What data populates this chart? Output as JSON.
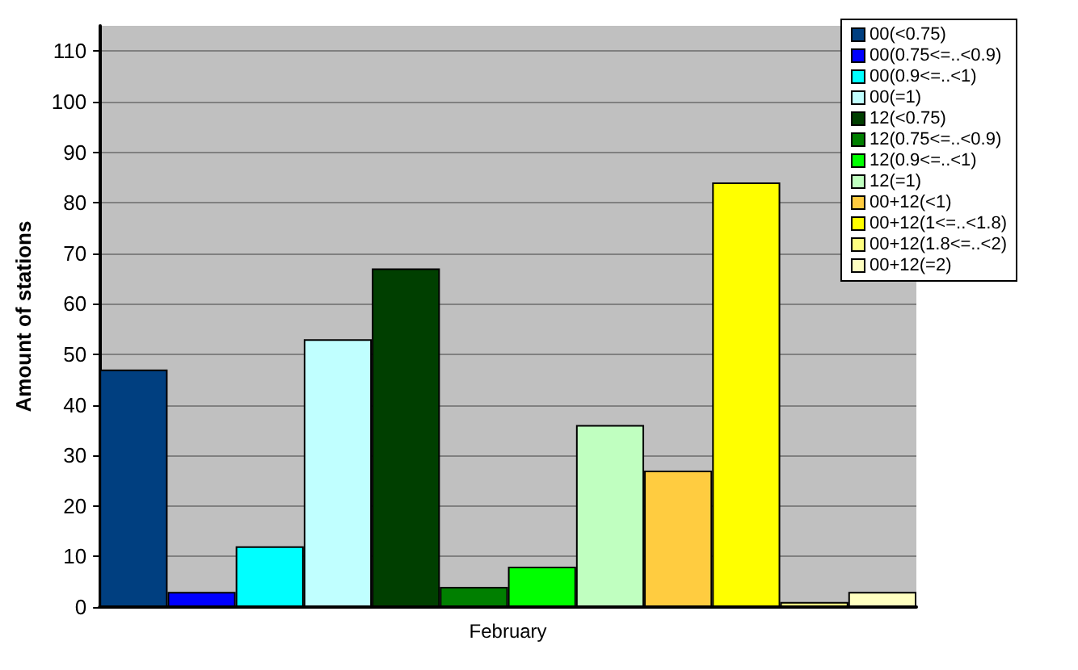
{
  "chart_data": {
    "type": "bar",
    "ylabel": "Amount of stations",
    "categories": [
      "February"
    ],
    "series": [
      {
        "name": "00(<0.75)",
        "color": "#003f80",
        "values": [
          47
        ]
      },
      {
        "name": "00(0.75<=..<0.9)",
        "color": "#0000ff",
        "values": [
          3
        ]
      },
      {
        "name": "00(0.9<=..<1)",
        "color": "#00ffff",
        "values": [
          12
        ]
      },
      {
        "name": "00(=1)",
        "color": "#c0ffff",
        "values": [
          53
        ]
      },
      {
        "name": "12(<0.75)",
        "color": "#003f00",
        "values": [
          67
        ]
      },
      {
        "name": "12(0.75<=..<0.9)",
        "color": "#007f00",
        "values": [
          4
        ]
      },
      {
        "name": "12(0.9<=..<1)",
        "color": "#00ff00",
        "values": [
          8
        ]
      },
      {
        "name": "12(=1)",
        "color": "#c0ffc0",
        "values": [
          36
        ]
      },
      {
        "name": "00+12(<1)",
        "color": "#ffcc40",
        "values": [
          27
        ]
      },
      {
        "name": "00+12(1<=..<1.8)",
        "color": "#ffff00",
        "values": [
          84
        ]
      },
      {
        "name": "00+12(1.8<=..<2)",
        "color": "#ffff80",
        "values": [
          1
        ]
      },
      {
        "name": "00+12(=2)",
        "color": "#ffffc0",
        "values": [
          3
        ]
      }
    ],
    "ylim": [
      0,
      115
    ],
    "yticks": [
      0,
      10,
      20,
      30,
      40,
      50,
      60,
      70,
      80,
      90,
      100,
      110
    ],
    "grid": "y",
    "legend": "top right"
  }
}
